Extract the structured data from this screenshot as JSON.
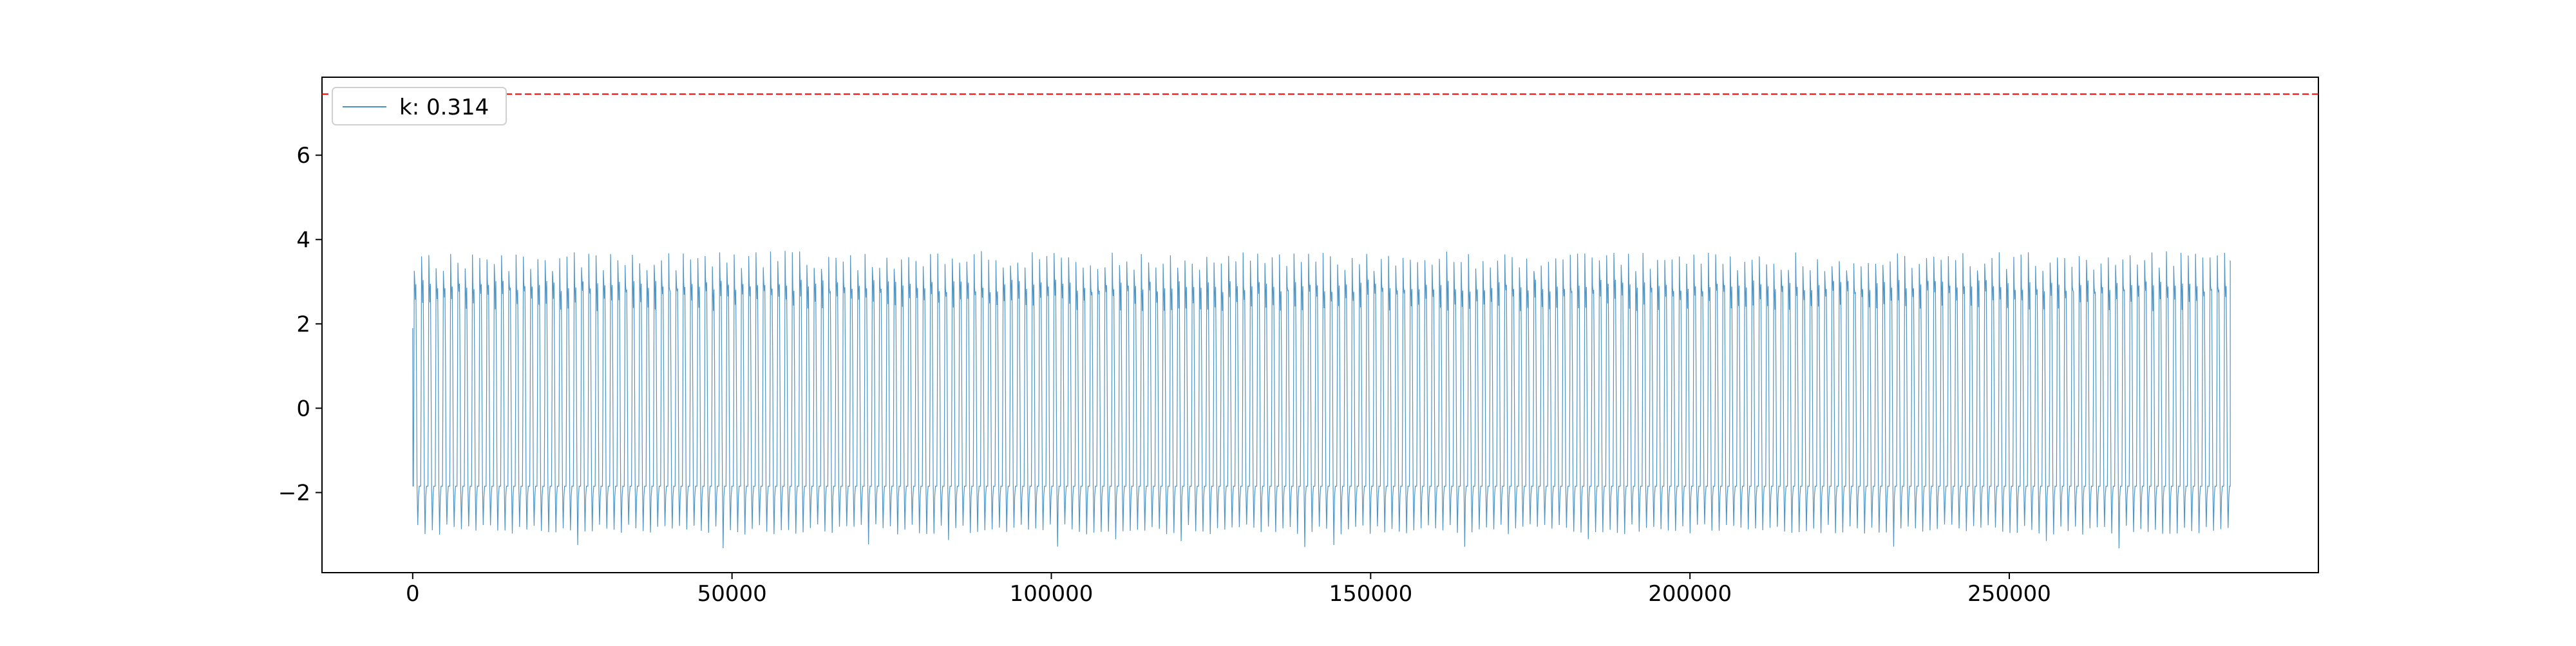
{
  "chart_data": {
    "type": "line",
    "title": "",
    "xlabel": "",
    "ylabel": "",
    "xlim": [
      -14200,
      298400
    ],
    "ylim": [
      -3.9,
      7.85
    ],
    "x_ticks": [
      0,
      50000,
      100000,
      150000,
      200000,
      250000
    ],
    "x_tick_labels": [
      "0",
      "50000",
      "100000",
      "150000",
      "200000",
      "250000"
    ],
    "y_ticks": [
      -2,
      0,
      2,
      4,
      6
    ],
    "y_tick_labels": [
      "−2",
      "0",
      "2",
      "4",
      "6"
    ],
    "grid": false,
    "legend": {
      "location": "upper-left",
      "entries": [
        "k: 0.314"
      ]
    },
    "threshold": {
      "y": 7.45,
      "color": "#ff0000",
      "style": "dashed"
    },
    "series": [
      {
        "name": "k: 0.314",
        "color": "#1f77b4",
        "x_start": 0,
        "x_end": 284600,
        "cycle_count": 250,
        "typical_max": 3.5,
        "upper_level": 3.1,
        "lower_level": -1.85,
        "typical_min": -2.9,
        "peak_max": 3.75,
        "trough_min": -3.35,
        "start_value": 1.9
      }
    ]
  }
}
